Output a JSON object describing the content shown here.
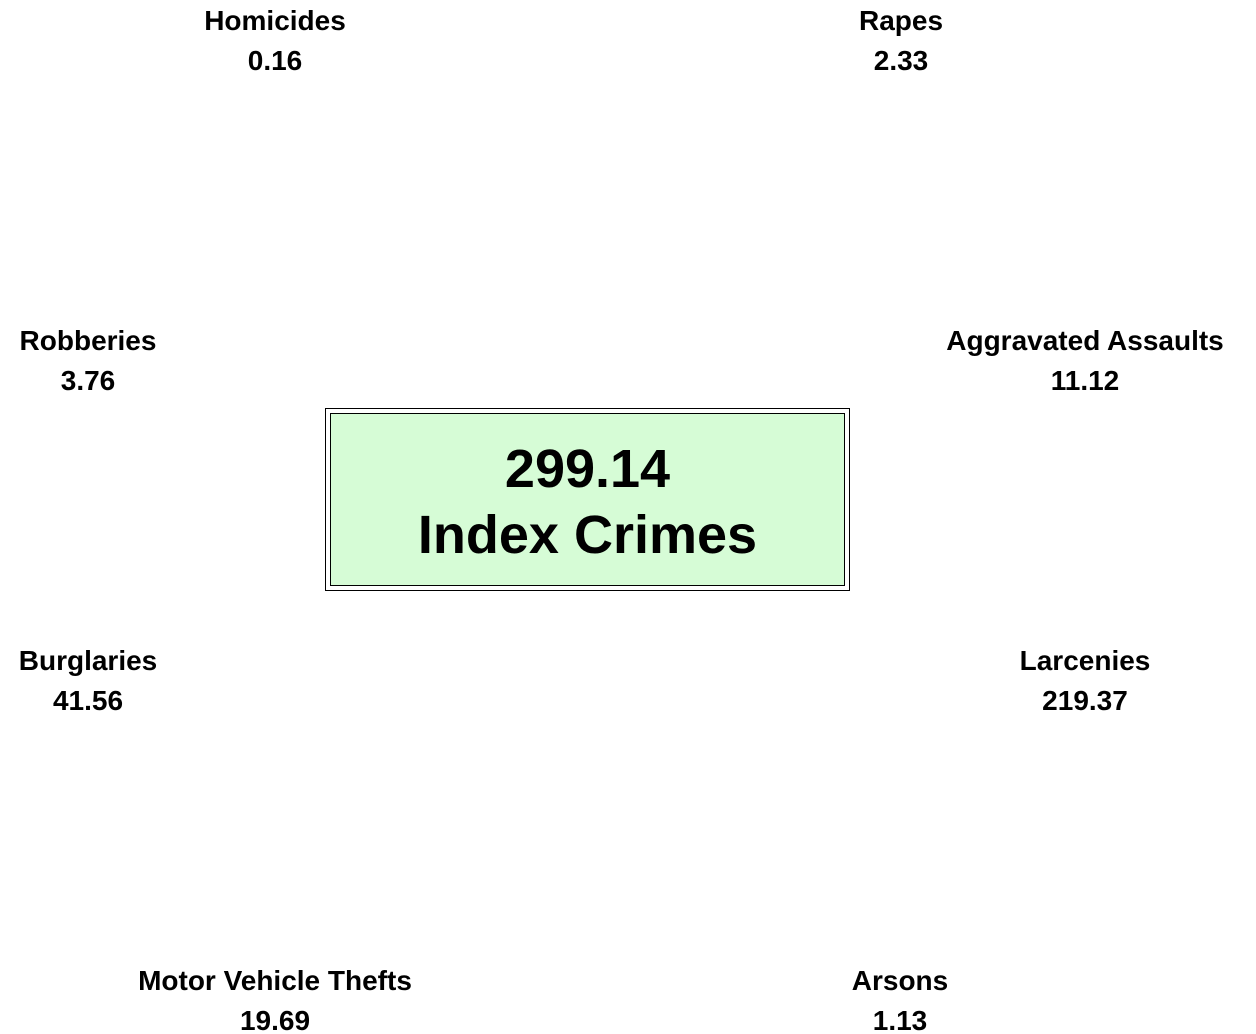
{
  "center": {
    "value": 299.14,
    "label": "Index Crimes"
  },
  "nodes": [
    {
      "label": "Homicides",
      "value": 0.16
    },
    {
      "label": "Rapes",
      "value": 2.33
    },
    {
      "label": "Robberies",
      "value": 3.76
    },
    {
      "label": "Aggravated Assaults",
      "value": 11.12
    },
    {
      "label": "Burglaries",
      "value": 41.56
    },
    {
      "label": "Larcenies",
      "value": 219.37
    },
    {
      "label": "Motor Vehicle Thefts",
      "value": 19.69
    },
    {
      "label": "Arsons",
      "value": 1.13
    }
  ]
}
